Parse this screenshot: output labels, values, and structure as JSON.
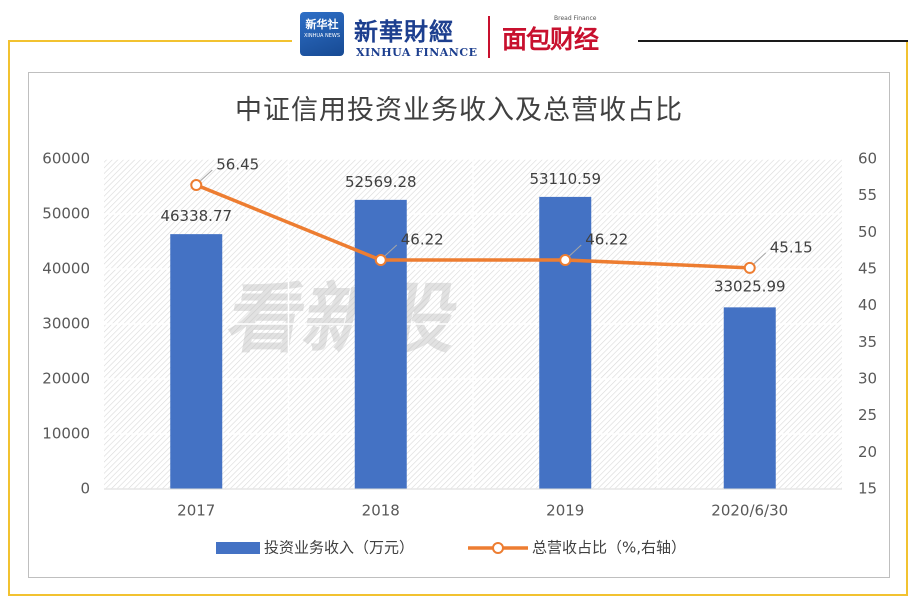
{
  "branding": {
    "badge_text": "新华社",
    "badge_subtext": "XINHUA NEWS",
    "logo_cn": "新華財經",
    "logo_en": "XINHUA FINANCE",
    "bread_cn": "面包财经",
    "bread_en": "Bread Finance",
    "watermark": "看新股"
  },
  "colors": {
    "bar": "#4472c4",
    "line": "#ed7d31",
    "frame": "#f2c230",
    "text": "#595959"
  },
  "chart_data": {
    "type": "bar+line",
    "title": "中证信用投资业务收入及总营收占比",
    "categories": [
      "2017",
      "2018",
      "2019",
      "2020/6/30"
    ],
    "series": [
      {
        "name": "投资业务收入（万元）",
        "type": "bar",
        "axis": "left",
        "values": [
          46338.77,
          52569.28,
          53110.59,
          33025.99
        ],
        "labels": [
          "46338.77",
          "52569.28",
          "53110.59",
          "33025.99"
        ]
      },
      {
        "name": "总营收占比（%,右轴）",
        "type": "line",
        "axis": "right",
        "values": [
          56.45,
          46.22,
          46.22,
          45.15
        ],
        "labels": [
          "56.45",
          "46.22",
          "46.22",
          "45.15"
        ]
      }
    ],
    "y_left": {
      "min": 0,
      "max": 60000,
      "step": 10000,
      "ticks": [
        "0",
        "10000",
        "20000",
        "30000",
        "40000",
        "50000",
        "60000"
      ]
    },
    "y_right": {
      "min": 15,
      "max": 60,
      "step": 5,
      "ticks": [
        "15",
        "20",
        "25",
        "30",
        "35",
        "40",
        "45",
        "50",
        "55",
        "60"
      ]
    },
    "grid": true,
    "legend_position": "bottom"
  }
}
